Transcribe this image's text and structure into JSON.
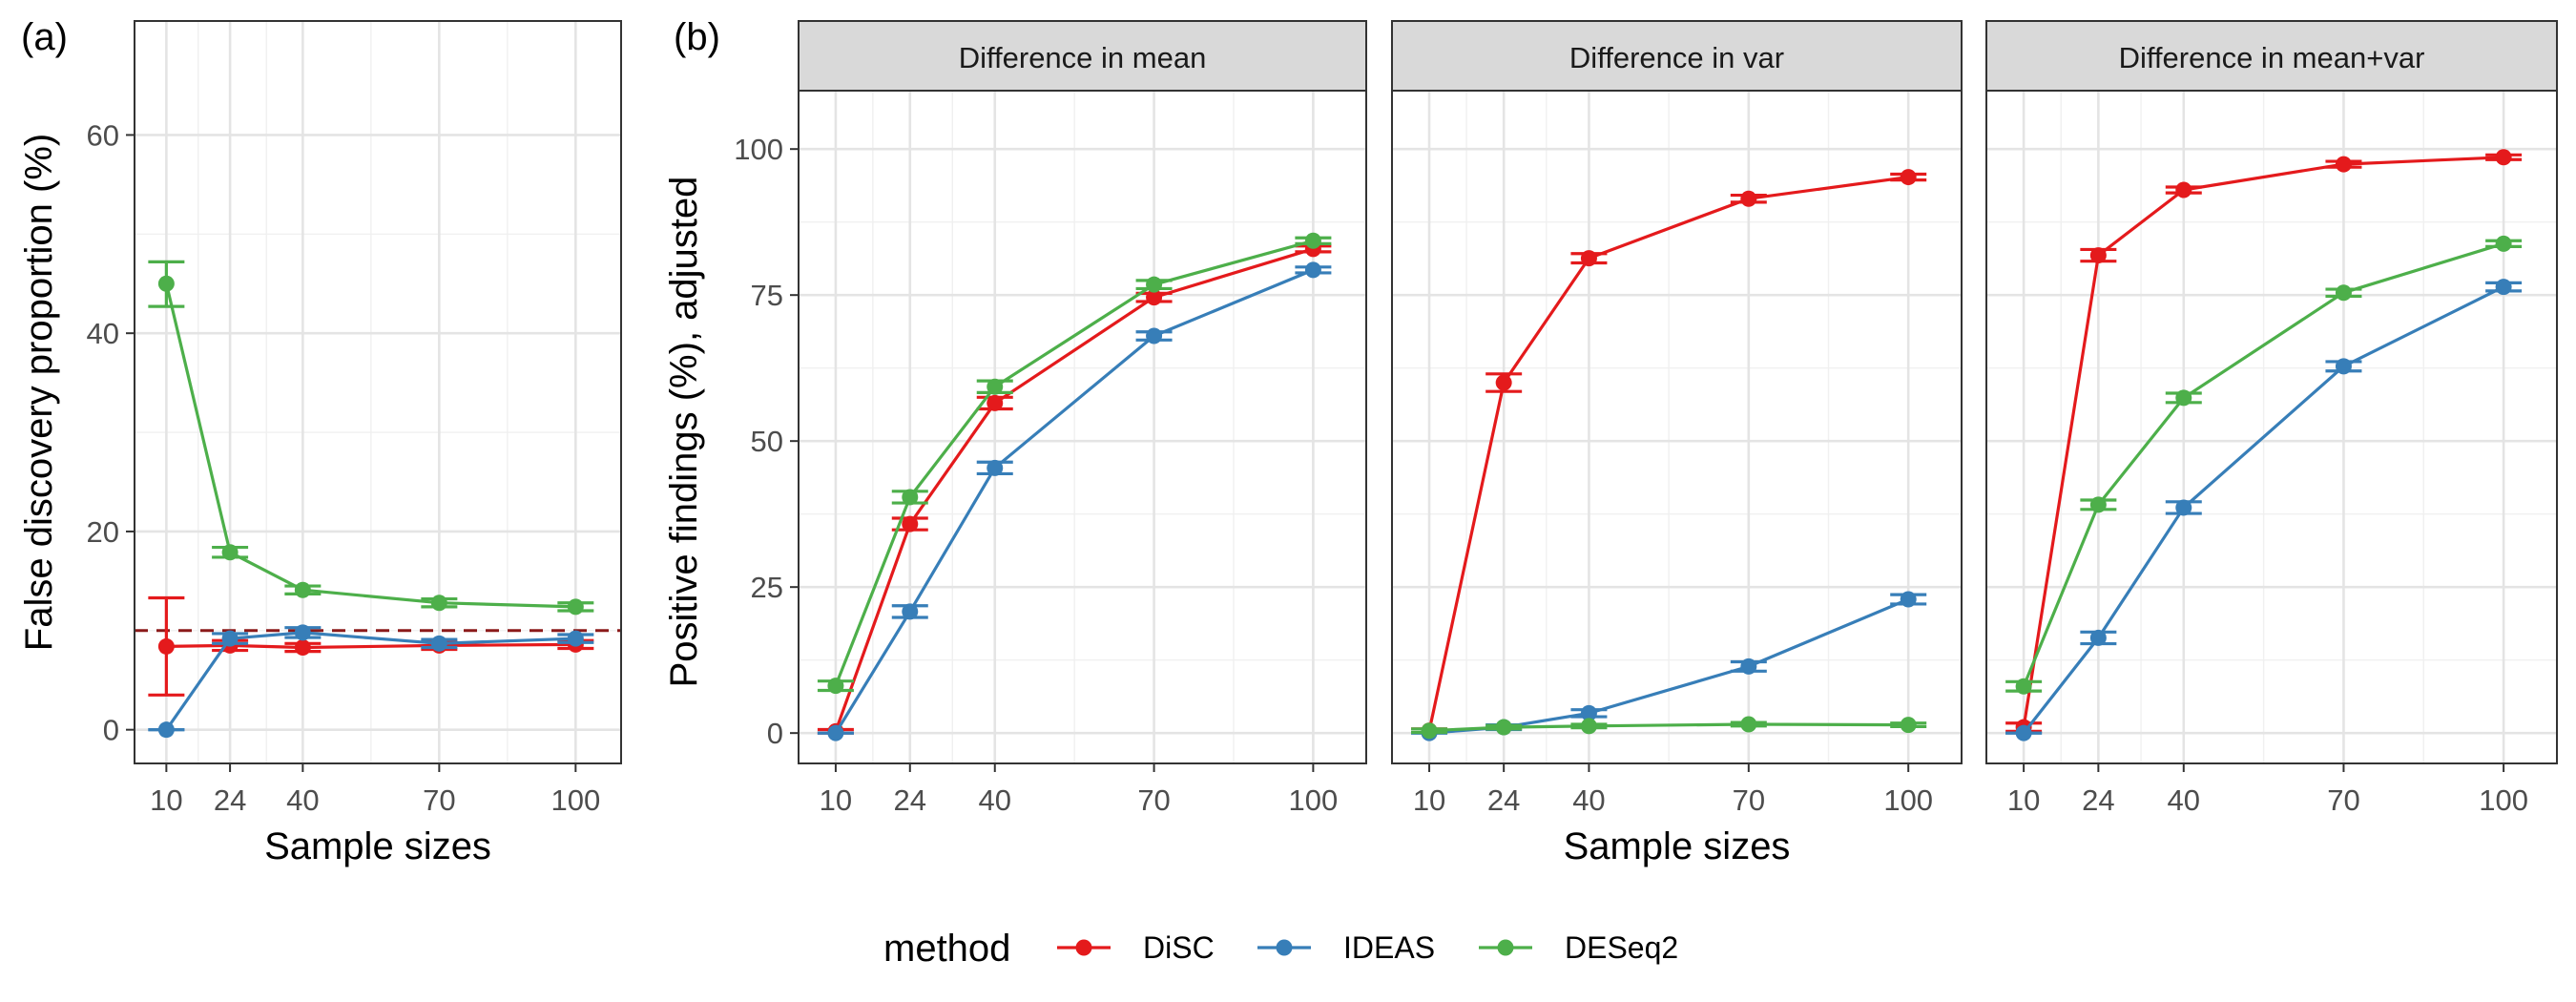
{
  "panel_labels": [
    "(a)",
    "(b)"
  ],
  "facet_titles": [
    "Difference in mean",
    "Difference in var",
    "Difference in mean+var"
  ],
  "legend": {
    "title": "method",
    "entries": [
      {
        "name": "DiSC",
        "color": "#e41a1c"
      },
      {
        "name": "IDEAS",
        "color": "#377eb8"
      },
      {
        "name": "DESeq2",
        "color": "#4daf4a"
      }
    ]
  },
  "chart_data": [
    {
      "type": "line",
      "panel": "(a)",
      "xlabel": "Sample sizes",
      "ylabel": "False discovery proportion (%)",
      "x": [
        10,
        24,
        40,
        70,
        100
      ],
      "xlim": [
        3,
        110
      ],
      "ylim": [
        -3.4,
        71.5
      ],
      "xticks": [
        10,
        24,
        40,
        70,
        100
      ],
      "yticks": [
        0,
        20,
        40,
        60
      ],
      "reference_line": {
        "y": 10,
        "style": "dashed",
        "color": "#8b1a1a"
      },
      "grid": true,
      "series": [
        {
          "name": "DiSC",
          "values": [
            8.4,
            8.5,
            8.3,
            8.5,
            8.6
          ],
          "lower": [
            3.5,
            8.0,
            7.9,
            8.1,
            8.2
          ],
          "upper": [
            13.3,
            9.0,
            8.7,
            8.9,
            9.0
          ]
        },
        {
          "name": "IDEAS",
          "values": [
            0.0,
            9.2,
            9.8,
            8.7,
            9.2
          ],
          "lower": [
            0.0,
            8.7,
            9.3,
            8.3,
            8.8
          ],
          "upper": [
            0.0,
            9.7,
            10.3,
            9.1,
            9.6
          ]
        },
        {
          "name": "DESeq2",
          "values": [
            45.0,
            17.9,
            14.1,
            12.8,
            12.4
          ],
          "lower": [
            42.7,
            17.4,
            13.7,
            12.4,
            12.0
          ],
          "upper": [
            47.2,
            18.4,
            14.5,
            13.2,
            12.8
          ]
        }
      ]
    },
    {
      "type": "line",
      "panel": "(b)",
      "facet": "Difference in mean",
      "xlabel": "Sample sizes",
      "ylabel": "Positive findings (%), adjusted",
      "x": [
        10,
        24,
        40,
        70,
        100
      ],
      "xlim": [
        3,
        110
      ],
      "ylim": [
        -5.2,
        110
      ],
      "xticks": [
        10,
        24,
        40,
        70,
        100
      ],
      "yticks": [
        0,
        25,
        50,
        75,
        100
      ],
      "grid": true,
      "series": [
        {
          "name": "DiSC",
          "values": [
            0.3,
            35.8,
            56.5,
            74.6,
            82.9
          ],
          "lower": [
            0.0,
            34.8,
            55.5,
            73.9,
            82.4
          ],
          "upper": [
            0.6,
            36.8,
            57.5,
            75.3,
            83.4
          ]
        },
        {
          "name": "IDEAS",
          "values": [
            0.0,
            20.8,
            45.4,
            68.0,
            79.3
          ],
          "lower": [
            0.0,
            19.8,
            44.4,
            67.3,
            78.8
          ],
          "upper": [
            0.0,
            21.8,
            46.4,
            68.7,
            79.8
          ]
        },
        {
          "name": "DESeq2",
          "values": [
            8.1,
            40.4,
            59.3,
            76.8,
            84.3
          ],
          "lower": [
            7.3,
            39.4,
            58.3,
            76.1,
            83.8
          ],
          "upper": [
            8.9,
            41.4,
            60.3,
            77.5,
            84.8
          ]
        }
      ]
    },
    {
      "type": "line",
      "panel": "(b)",
      "facet": "Difference in var",
      "xlabel": "Sample sizes",
      "ylabel": "",
      "x": [
        10,
        24,
        40,
        70,
        100
      ],
      "xlim": [
        3,
        110
      ],
      "ylim": [
        -5.2,
        110
      ],
      "xticks": [
        10,
        24,
        40,
        70,
        100
      ],
      "yticks": [
        0,
        25,
        50,
        75,
        100
      ],
      "grid": true,
      "series": [
        {
          "name": "DiSC",
          "values": [
            0.4,
            60.0,
            81.3,
            91.5,
            95.2
          ],
          "lower": [
            0.1,
            58.5,
            80.5,
            90.9,
            94.7
          ],
          "upper": [
            0.7,
            61.5,
            82.1,
            92.1,
            95.7
          ]
        },
        {
          "name": "IDEAS",
          "values": [
            0.0,
            1.0,
            3.4,
            11.4,
            22.9
          ],
          "lower": [
            0.0,
            0.6,
            2.8,
            10.6,
            22.1
          ],
          "upper": [
            0.0,
            1.4,
            4.0,
            12.2,
            23.7
          ]
        },
        {
          "name": "DESeq2",
          "values": [
            0.4,
            1.0,
            1.2,
            1.5,
            1.4
          ],
          "lower": [
            0.1,
            0.7,
            0.9,
            1.2,
            1.1
          ],
          "upper": [
            0.7,
            1.3,
            1.5,
            1.8,
            1.7
          ]
        }
      ]
    },
    {
      "type": "line",
      "panel": "(b)",
      "facet": "Difference in mean+var",
      "xlabel": "Sample sizes",
      "ylabel": "",
      "x": [
        10,
        24,
        40,
        70,
        100
      ],
      "xlim": [
        3,
        110
      ],
      "ylim": [
        -5.2,
        110
      ],
      "xticks": [
        10,
        24,
        40,
        70,
        100
      ],
      "yticks": [
        0,
        25,
        50,
        75,
        100
      ],
      "grid": true,
      "series": [
        {
          "name": "DiSC",
          "values": [
            1.0,
            81.8,
            93.0,
            97.4,
            98.6
          ],
          "lower": [
            0.3,
            80.8,
            92.5,
            96.9,
            98.2
          ],
          "upper": [
            1.7,
            82.8,
            93.5,
            97.9,
            99.0
          ]
        },
        {
          "name": "IDEAS",
          "values": [
            0.0,
            16.3,
            38.6,
            62.8,
            76.4
          ],
          "lower": [
            0.0,
            15.3,
            37.6,
            62.0,
            75.7
          ],
          "upper": [
            0.0,
            17.3,
            39.6,
            63.6,
            77.1
          ]
        },
        {
          "name": "DESeq2",
          "values": [
            8.0,
            39.1,
            57.4,
            75.4,
            83.8
          ],
          "lower": [
            7.2,
            38.3,
            56.6,
            74.8,
            83.3
          ],
          "upper": [
            8.8,
            39.9,
            58.2,
            76.0,
            84.3
          ]
        }
      ]
    }
  ]
}
